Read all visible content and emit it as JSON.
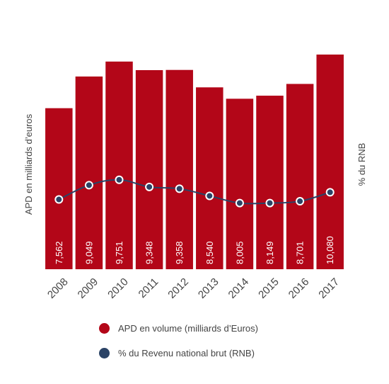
{
  "chart_data": {
    "type": "bar",
    "categories": [
      "2008",
      "2009",
      "2010",
      "2011",
      "2012",
      "2013",
      "2014",
      "2015",
      "2016",
      "2017"
    ],
    "series": [
      {
        "name": "APD en volume (milliards d’Euros)",
        "kind": "bar",
        "axis": "left",
        "color": "#b30618",
        "values": [
          7.562,
          9.049,
          9.751,
          9.348,
          9.358,
          8.54,
          8.005,
          8.149,
          8.701,
          10.08
        ],
        "value_labels": [
          "7,562",
          "9,049",
          "9,751",
          "9,348",
          "9,358",
          "8,540",
          "8,005",
          "8,149",
          "8,701",
          "10,080"
        ]
      },
      {
        "name": "% du Revenu national brut (RNB)",
        "kind": "line",
        "axis": "right",
        "color": "#2b4366",
        "values": [
          0.39,
          0.47,
          0.5,
          0.46,
          0.45,
          0.41,
          0.37,
          0.37,
          0.38,
          0.43
        ]
      }
    ],
    "ylabel": "APD en milliards d’euros",
    "y2label": "% du RNB",
    "ylim": [
      0,
      10.08
    ],
    "y2lim": [
      0,
      1.2
    ],
    "grid": false,
    "legend_position": "bottom"
  }
}
